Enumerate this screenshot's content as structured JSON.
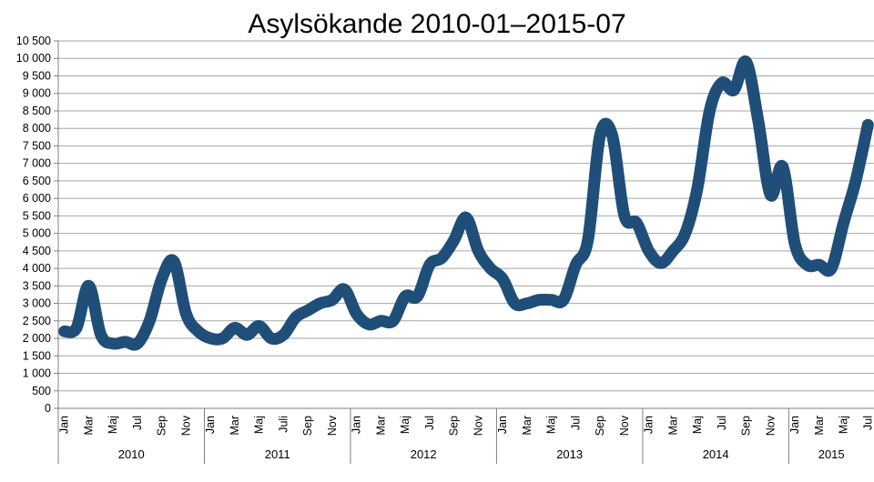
{
  "chart_data": {
    "type": "line",
    "title": "Asylsökande 2010-01–2015-07",
    "xlabel": "",
    "ylabel": "",
    "ylim": [
      0,
      10500
    ],
    "y_ticks": [
      0,
      500,
      1000,
      1500,
      2000,
      2500,
      3000,
      3500,
      4000,
      4500,
      5000,
      5500,
      6000,
      6500,
      7000,
      7500,
      8000,
      8500,
      9000,
      9500,
      10000,
      10500
    ],
    "y_tick_labels": [
      "0",
      "500",
      "1 000",
      "1 500",
      "2 000",
      "2 500",
      "3 000",
      "3 500",
      "4 000",
      "4 500",
      "5 000",
      "5 500",
      "6 000",
      "6 500",
      "7 000",
      "7 500",
      "8 000",
      "8 500",
      "9 000",
      "9 500",
      "10 000",
      "10 500"
    ],
    "month_tick_labels": [
      "Jan",
      "Mar",
      "Maj",
      "Jul",
      "Sep",
      "Nov"
    ],
    "month_tick_labels_2011": [
      "Jan",
      "Mar",
      "Maj",
      "Juli",
      "Sep",
      "Nov"
    ],
    "year_labels": [
      "2010",
      "2011",
      "2012",
      "2013",
      "2014",
      "2015"
    ],
    "grid": true,
    "line_color": "#1f4e79",
    "series": [
      {
        "values": [
          2200,
          2300,
          3500,
          2100,
          1850,
          1900,
          1850,
          2500,
          3700,
          4200,
          2700,
          2200,
          2000,
          2000,
          2300,
          2100,
          2350,
          2000,
          2100,
          2600,
          2800,
          3000,
          3100,
          3400,
          2700,
          2400,
          2500,
          2500,
          3200,
          3200,
          4100,
          4300,
          4800,
          5450,
          4500,
          4000,
          3700,
          3000,
          3000,
          3100,
          3100,
          3100,
          4100,
          4800,
          7800,
          7800,
          5500,
          5300,
          4500,
          4150,
          4500,
          5000,
          6300,
          8500,
          9300,
          9100,
          9900,
          8200,
          6100,
          6900,
          4700,
          4100,
          4100,
          4000,
          5300,
          6500,
          8100
        ]
      }
    ]
  }
}
